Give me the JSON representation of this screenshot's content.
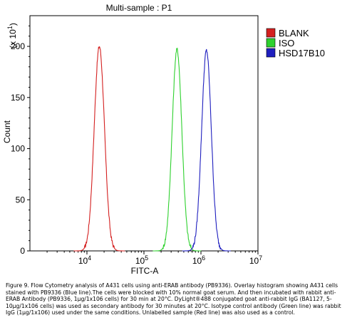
{
  "chart_data": {
    "type": "line",
    "title": "Multi-sample : P1",
    "xlabel": "FITC-A",
    "ylabel": "Count",
    "y_multiplier_label": "(x 10",
    "y_multiplier_exp": "1",
    "xscale": "log",
    "xlim": [
      1000,
      10000000
    ],
    "ylim": [
      0,
      230
    ],
    "x_ticks": [
      {
        "value": 10000,
        "base": "10",
        "exp": "4"
      },
      {
        "value": 100000,
        "base": "10",
        "exp": "5"
      },
      {
        "value": 1000000,
        "base": "10",
        "exp": "6"
      },
      {
        "value": 10000000,
        "base": "10",
        "exp": "7"
      }
    ],
    "y_ticks": [
      0,
      50,
      100,
      150,
      200
    ],
    "legend_position": "top-right, outside plot",
    "series": [
      {
        "name": "BLANK",
        "color": "#d42020",
        "center": 16500,
        "peak": 200,
        "sigma": 0.09
      },
      {
        "name": "ISO",
        "color": "#2ed12e",
        "center": 380000,
        "peak": 197,
        "sigma": 0.085
      },
      {
        "name": "HSD17B10",
        "color": "#1f1fbf",
        "center": 1250000,
        "peak": 196,
        "sigma": 0.085
      }
    ]
  },
  "caption": "Figure 9. Flow Cytometry analysis of A431 cells using anti-ERAB antibody (PB9336). Overlay histogram showing A431 cells stained with PB9336 (Blue line).The cells were blocked with 10% normal goat serum. And then incubated with rabbit anti-ERAB Antibody (PB9336, 1μg/1x106 cells) for 30 min at 20°C. DyLight®488 conjugated goat anti-rabbit IgG (BA1127, 5-10μg/1x106 cells) was used as secondary antibody for 30 minutes at 20°C. Isotype control antibody (Green line) was rabbit IgG (1μg/1x106) used under the same conditions. Unlabelled sample (Red line) was also used as a control."
}
